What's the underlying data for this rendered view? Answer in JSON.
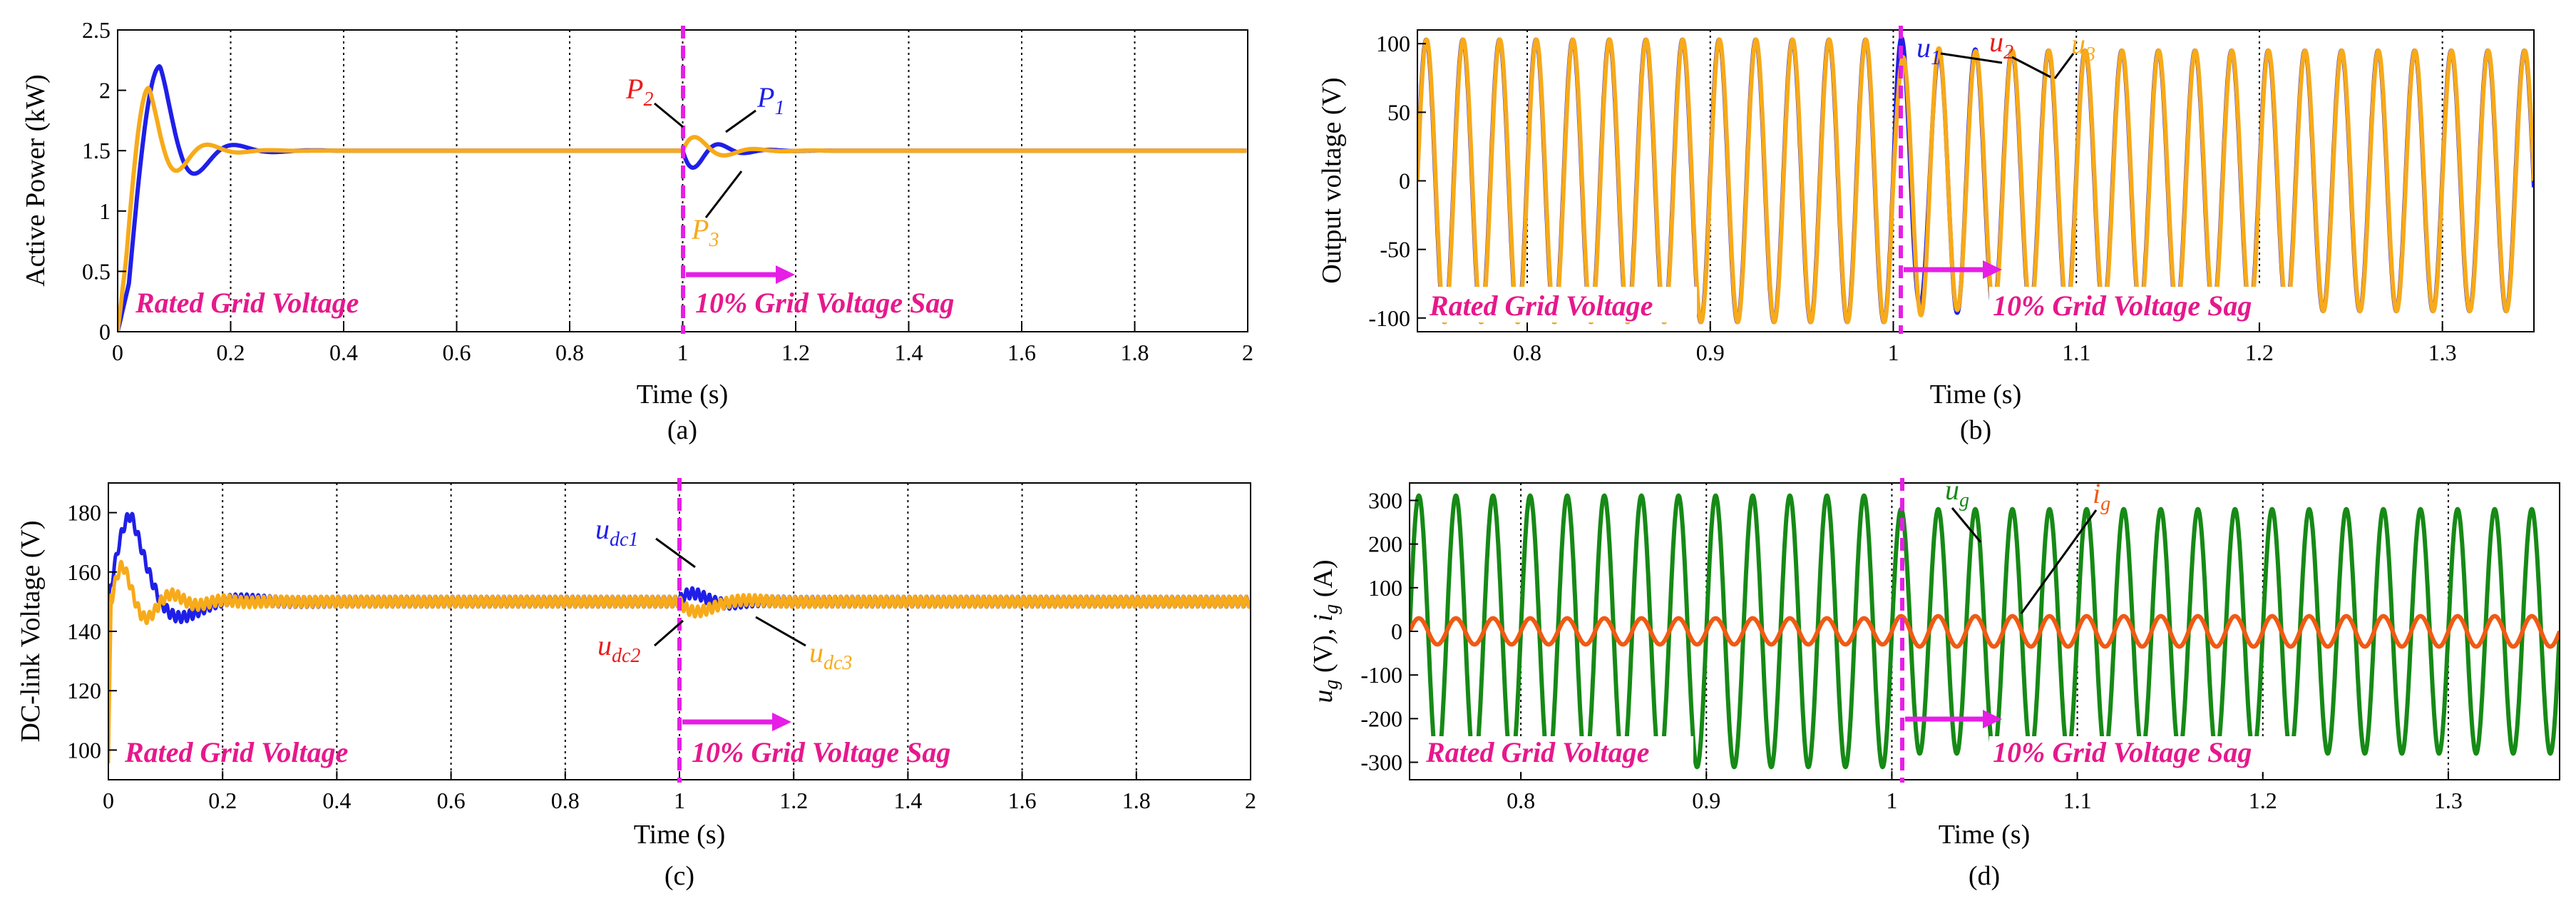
{
  "colors": {
    "blue": "#1f1fe8",
    "red": "#e81c1c",
    "orange_yellow": "#f7aa1a",
    "green": "#168a16",
    "orange": "#f05a14",
    "magenta": "#e61ee6",
    "pink_text": "#e6188c",
    "black": "#000000"
  },
  "chart_data": [
    {
      "id": "a",
      "type": "line",
      "caption": "(a)",
      "xlabel": "Time (s)",
      "ylabel": "Active Power (kW)",
      "xlim": [
        0,
        2
      ],
      "ylim": [
        0,
        2.5
      ],
      "xticks": [
        0,
        0.2,
        0.4,
        0.6,
        0.8,
        1,
        1.2,
        1.4,
        1.6,
        1.8,
        2
      ],
      "xtick_labels": [
        "0",
        "0.2",
        "0.4",
        "0.6",
        "0.8",
        "1",
        "1.2",
        "1.4",
        "1.6",
        "1.8",
        "2"
      ],
      "yticks": [
        0,
        0.5,
        1,
        1.5,
        2,
        2.5
      ],
      "ytick_labels": [
        "0",
        "0.5",
        "1",
        "1.5",
        "2",
        "2.5"
      ],
      "grid": "dotted vertical",
      "event_time": 1,
      "steady_state": 1.5,
      "series": [
        {
          "name": "P1",
          "sub": "1",
          "color": "#1f1fe8",
          "first_peak": [
            0.075,
            2.2
          ],
          "dip_after_event": [
            1.02,
            1.32
          ],
          "peak_after_event": [
            1.06,
            1.65
          ]
        },
        {
          "name": "P2",
          "sub": "2",
          "color": "#e81c1c",
          "note": "overlaps P3"
        },
        {
          "name": "P3",
          "sub": "3",
          "color": "#f7aa1a",
          "first_peak": [
            0.055,
            2.02
          ],
          "dip": [
            0.11,
            1.27
          ],
          "peak_after_event": [
            1.04,
            1.67
          ],
          "dip_after_event": [
            1.1,
            1.38
          ]
        }
      ],
      "annotations": {
        "left": "Rated Grid Voltage",
        "right": "10% Grid Voltage Sag"
      }
    },
    {
      "id": "b",
      "type": "line",
      "caption": "(b)",
      "xlabel": "Time (s)",
      "ylabel": "Output voltage (V)",
      "xlim": [
        0.74,
        1.35
      ],
      "ylim": [
        -110,
        110
      ],
      "xticks": [
        0.8,
        0.9,
        1,
        1.1,
        1.2,
        1.3
      ],
      "xtick_labels": [
        "0.8",
        "0.9",
        "1",
        "1.1",
        "1.2",
        "1.3"
      ],
      "yticks": [
        -100,
        -50,
        0,
        50,
        100
      ],
      "ytick_labels": [
        "-100",
        "-50",
        "0",
        "50",
        "100"
      ],
      "grid": "dotted vertical",
      "event_time": 1,
      "frequency_hz": 50,
      "amplitude_before": 103,
      "amplitude_after": 95,
      "series": [
        {
          "name": "u1",
          "sub": "1",
          "color": "#1f1fe8"
        },
        {
          "name": "u2",
          "sub": "2",
          "color": "#e81c1c"
        },
        {
          "name": "u3",
          "sub": "3",
          "color": "#f7aa1a"
        }
      ],
      "annotations": {
        "left": "Rated Grid Voltage",
        "right": "10% Grid Voltage Sag"
      }
    },
    {
      "id": "c",
      "type": "line",
      "caption": "(c)",
      "xlabel": "Time (s)",
      "ylabel": "DC-link Voltage (V)",
      "xlim": [
        0,
        2
      ],
      "ylim": [
        90,
        190
      ],
      "xticks": [
        0,
        0.2,
        0.4,
        0.6,
        0.8,
        1,
        1.2,
        1.4,
        1.6,
        1.8,
        2
      ],
      "xtick_labels": [
        "0",
        "0.2",
        "0.4",
        "0.6",
        "0.8",
        "1",
        "1.2",
        "1.4",
        "1.6",
        "1.8",
        "2"
      ],
      "yticks": [
        100,
        120,
        140,
        160,
        180
      ],
      "ytick_labels": [
        "100",
        "120",
        "140",
        "160",
        "180"
      ],
      "grid": "dotted vertical",
      "event_time": 1,
      "steady_state": 150,
      "series": [
        {
          "name": "udc1",
          "sub": "dc1",
          "color": "#1f1fe8",
          "first_peak": [
            0.04,
            179
          ],
          "peak_after_event": [
            1.03,
            155
          ]
        },
        {
          "name": "udc2",
          "sub": "dc2",
          "color": "#e81c1c",
          "note": "overlaps udc3"
        },
        {
          "name": "udc3",
          "sub": "dc3",
          "color": "#f7aa1a",
          "first_peak": [
            0.025,
            162
          ],
          "dip": [
            0.07,
            140
          ],
          "dip_after_event": [
            1.05,
            143
          ]
        }
      ],
      "annotations": {
        "left": "Rated Grid Voltage",
        "right": "10% Grid Voltage Sag"
      }
    },
    {
      "id": "d",
      "type": "line",
      "caption": "(d)",
      "xlabel": "Time (s)",
      "ylabel_parts": [
        "u",
        "g",
        " (V), ",
        "i",
        "g",
        " (A)"
      ],
      "xlim": [
        0.74,
        1.36
      ],
      "ylim": [
        -340,
        340
      ],
      "xticks": [
        0.8,
        0.9,
        1,
        1.1,
        1.2,
        1.3
      ],
      "xtick_labels": [
        "0.8",
        "0.9",
        "1",
        "1.1",
        "1.2",
        "1.3"
      ],
      "yticks": [
        -300,
        -200,
        -100,
        0,
        100,
        200,
        300
      ],
      "ytick_labels": [
        "-300",
        "-200",
        "-100",
        "0",
        "100",
        "200",
        "300"
      ],
      "grid": "dotted vertical",
      "event_time": 1,
      "frequency_hz": 50,
      "series": [
        {
          "name": "ug",
          "sub": "g",
          "color": "#168a16",
          "amplitude_before": 311,
          "amplitude_after": 280
        },
        {
          "name": "ig",
          "sub": "g",
          "color": "#f05a14",
          "amplitude_before": 30,
          "amplitude_after": 35
        }
      ],
      "annotations": {
        "left": "Rated Grid Voltage",
        "right": "10% Grid Voltage Sag"
      }
    }
  ]
}
